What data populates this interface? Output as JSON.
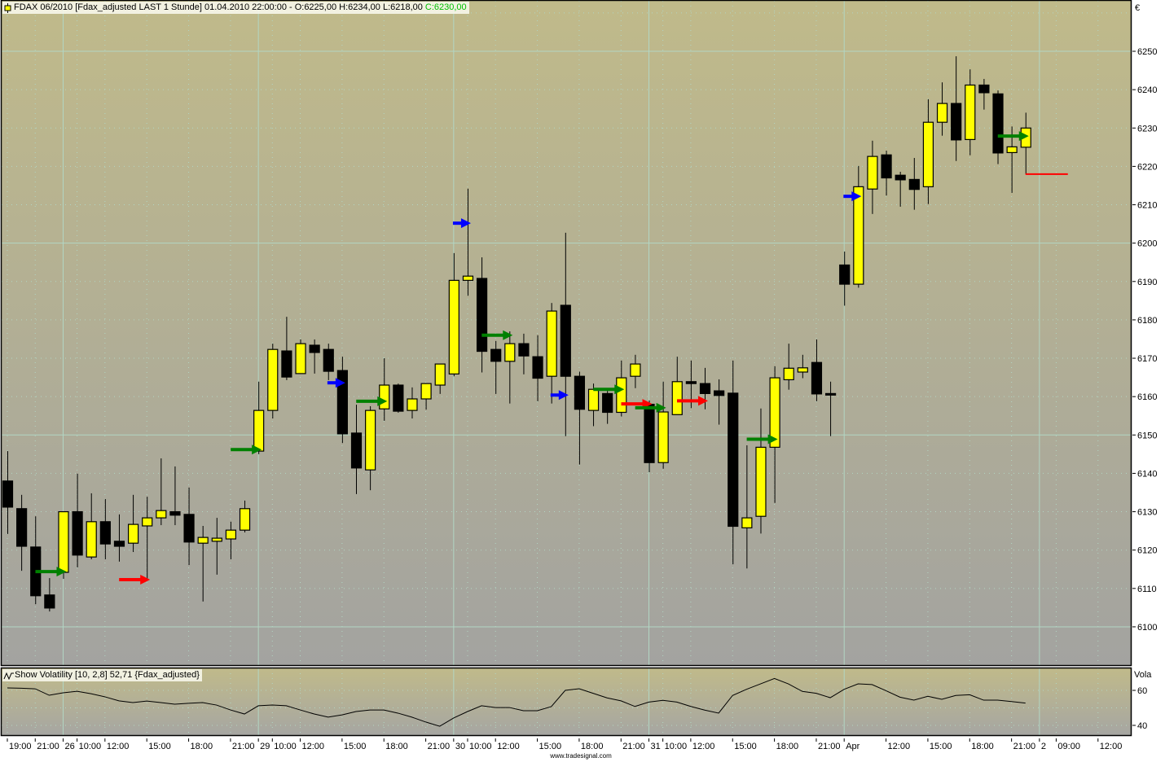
{
  "header": {
    "icon": "candlestick-icon",
    "text": "FDAX 06/2010 [Fdax_adjusted LAST 1 Stunde] 01.04.2010 22:00:00 - O:6225,00 H:6234,00 L:6218,00",
    "close": "C:6230,00",
    "close_color": "#00c000"
  },
  "indicator": {
    "icon": "wave-icon",
    "label": "Show Volatility [10, 2,8] 52,71 {Fdax_adjusted}"
  },
  "footer": "www.tradesignal.com",
  "colors": {
    "background_top": "#c0ba8a",
    "background_bottom": "#a3a3a0",
    "up_candle": "#ffff00",
    "down_candle": "#000000",
    "grid": "#b2d6c4"
  },
  "chart_data": [
    {
      "type": "candlestick",
      "y_unit_label": "€",
      "ylim": [
        6090,
        6265
      ],
      "y_ticks": [
        6100,
        6110,
        6120,
        6130,
        6140,
        6150,
        6160,
        6170,
        6180,
        6190,
        6200,
        6210,
        6220,
        6230,
        6240,
        6250
      ],
      "grid": true,
      "x_ticks": [
        {
          "label": "19:00",
          "index": 0
        },
        {
          "label": "21:00",
          "index": 2
        },
        {
          "label": "26",
          "index": 4,
          "day": true
        },
        {
          "label": "10:00",
          "index": 5
        },
        {
          "label": "12:00",
          "index": 7
        },
        {
          "label": "15:00",
          "index": 10
        },
        {
          "label": "18:00",
          "index": 13
        },
        {
          "label": "21:00",
          "index": 16
        },
        {
          "label": "29",
          "index": 18,
          "day": true
        },
        {
          "label": "10:00",
          "index": 19
        },
        {
          "label": "12:00",
          "index": 21
        },
        {
          "label": "15:00",
          "index": 24
        },
        {
          "label": "18:00",
          "index": 27
        },
        {
          "label": "21:00",
          "index": 30
        },
        {
          "label": "30",
          "index": 32,
          "day": true
        },
        {
          "label": "10:00",
          "index": 33
        },
        {
          "label": "12:00",
          "index": 35
        },
        {
          "label": "15:00",
          "index": 38
        },
        {
          "label": "18:00",
          "index": 41
        },
        {
          "label": "21:00",
          "index": 44
        },
        {
          "label": "31",
          "index": 46,
          "day": true
        },
        {
          "label": "10:00",
          "index": 47
        },
        {
          "label": "12:00",
          "index": 49
        },
        {
          "label": "15:00",
          "index": 52
        },
        {
          "label": "18:00",
          "index": 55
        },
        {
          "label": "21:00",
          "index": 58
        },
        {
          "label": "Apr",
          "index": 60,
          "day": true
        },
        {
          "label": "12:00",
          "index": 63
        },
        {
          "label": "15:00",
          "index": 66
        },
        {
          "label": "18:00",
          "index": 69
        },
        {
          "label": "21:00",
          "index": 72
        },
        {
          "label": "2",
          "index": 74,
          "day": true
        },
        {
          "label": "09:00",
          "index": 75.2
        },
        {
          "label": "12:00",
          "index": 78.2
        }
      ],
      "ohlc": [
        [
          6138.0,
          6145.8,
          6124.2,
          6131.2
        ],
        [
          6130.8,
          6134.4,
          6114.6,
          6121.0
        ],
        [
          6120.8,
          6128.8,
          6105.9,
          6108.1
        ],
        [
          6108.3,
          6112.7,
          6104.0,
          6104.9
        ],
        [
          6114.2,
          6130.0,
          6112.5,
          6130.0
        ],
        [
          6130.0,
          6139.9,
          6115.5,
          6118.7
        ],
        [
          6118.2,
          6134.8,
          6117.6,
          6127.4
        ],
        [
          6127.4,
          6133.3,
          6117.6,
          6121.6
        ],
        [
          6122.3,
          6129.3,
          6117.0,
          6121.0
        ],
        [
          6121.8,
          6134.4,
          6119.5,
          6126.7
        ],
        [
          6126.3,
          6133.9,
          6112.5,
          6128.4
        ],
        [
          6128.4,
          6143.9,
          6126.5,
          6130.3
        ],
        [
          6130.0,
          6141.8,
          6126.5,
          6129.1
        ],
        [
          6129.3,
          6136.3,
          6116.1,
          6122.1
        ],
        [
          6121.8,
          6126.3,
          6106.6,
          6123.3
        ],
        [
          6122.3,
          6128.4,
          6113.6,
          6123.1
        ],
        [
          6122.9,
          6127.4,
          6117.6,
          6125.2
        ],
        [
          6125.2,
          6132.9,
          6124.6,
          6130.8
        ],
        [
          6145.8,
          6163.9,
          6145.0,
          6156.4
        ],
        [
          6156.4,
          6173.8,
          6154.3,
          6172.3
        ],
        [
          6171.9,
          6180.8,
          6164.3,
          6165.1
        ],
        [
          6166.0,
          6174.9,
          6166.0,
          6173.8
        ],
        [
          6173.4,
          6174.9,
          6166.0,
          6171.5
        ],
        [
          6172.3,
          6173.8,
          6164.3,
          6166.6
        ],
        [
          6166.8,
          6170.4,
          6147.9,
          6150.3
        ],
        [
          6150.5,
          6157.9,
          6134.6,
          6141.4
        ],
        [
          6140.9,
          6157.5,
          6135.6,
          6156.4
        ],
        [
          6156.8,
          6170.0,
          6153.7,
          6163.0
        ],
        [
          6163.0,
          6163.4,
          6155.8,
          6156.2
        ],
        [
          6156.4,
          6162.4,
          6154.3,
          6159.4
        ],
        [
          6159.4,
          6163.4,
          6156.6,
          6163.4
        ],
        [
          6163.0,
          6168.5,
          6160.7,
          6168.5
        ],
        [
          6165.9,
          6197.4,
          6165.3,
          6190.3
        ],
        [
          6190.3,
          6214.2,
          6186.3,
          6191.4
        ],
        [
          6190.8,
          6196.3,
          6166.3,
          6171.8
        ],
        [
          6172.3,
          6174.5,
          6160.7,
          6169.2
        ],
        [
          6169.2,
          6177.0,
          6158.2,
          6173.8
        ],
        [
          6173.8,
          6176.4,
          6165.8,
          6170.6
        ],
        [
          6170.4,
          6176.0,
          6158.8,
          6164.8
        ],
        [
          6165.3,
          6184.4,
          6158.2,
          6182.3
        ],
        [
          6183.8,
          6202.7,
          6149.7,
          6165.3
        ],
        [
          6165.3,
          6166.5,
          6142.3,
          6156.7
        ],
        [
          6156.4,
          6163.4,
          6152.3,
          6161.9
        ],
        [
          6160.8,
          6161.5,
          6152.9,
          6155.9
        ],
        [
          6155.9,
          6169.4,
          6154.8,
          6164.9
        ],
        [
          6165.3,
          6170.9,
          6162.2,
          6168.5
        ],
        [
          6158.0,
          6159.0,
          6140.3,
          6142.8
        ],
        [
          6142.8,
          6163.9,
          6141.2,
          6156.0
        ],
        [
          6155.3,
          6170.4,
          6155.3,
          6163.9
        ],
        [
          6163.9,
          6169.4,
          6157.0,
          6163.4
        ],
        [
          6163.4,
          6167.5,
          6156.7,
          6160.8
        ],
        [
          6161.5,
          6164.5,
          6152.7,
          6160.3
        ],
        [
          6160.9,
          6169.4,
          6116.3,
          6126.2
        ],
        [
          6125.8,
          6147.3,
          6115.2,
          6128.4
        ],
        [
          6128.8,
          6156.9,
          6124.3,
          6146.8
        ],
        [
          6146.8,
          6167.9,
          6132.3,
          6164.9
        ],
        [
          6164.4,
          6173.8,
          6161.8,
          6167.4
        ],
        [
          6166.4,
          6170.9,
          6164.8,
          6167.5
        ],
        [
          6168.9,
          6174.9,
          6158.8,
          6160.7
        ],
        [
          6160.8,
          6163.9,
          6149.7,
          6160.4
        ],
        [
          6194.3,
          6197.8,
          6183.7,
          6189.3
        ],
        [
          6189.3,
          6220.1,
          6188.4,
          6214.7
        ],
        [
          6214.1,
          6226.7,
          6207.6,
          6222.6
        ],
        [
          6223.0,
          6224.1,
          6212.4,
          6217.0
        ],
        [
          6217.7,
          6218.6,
          6209.5,
          6216.5
        ],
        [
          6216.6,
          6222.2,
          6208.7,
          6214.0
        ],
        [
          6214.7,
          6237.5,
          6210.2,
          6231.5
        ],
        [
          6231.5,
          6241.9,
          6228.0,
          6236.4
        ],
        [
          6236.4,
          6248.7,
          6221.4,
          6226.9
        ],
        [
          6227.0,
          6245.3,
          6222.9,
          6241.2
        ],
        [
          6241.2,
          6242.8,
          6234.8,
          6239.2
        ],
        [
          6238.9,
          6239.8,
          6220.6,
          6223.5
        ],
        [
          6223.6,
          6230.4,
          6213.1,
          6225.1
        ],
        [
          6225.0,
          6234.0,
          6218.0,
          6230.0
        ]
      ],
      "signals": [
        {
          "index": 4,
          "price": 6114.4,
          "color": "#008000"
        },
        {
          "index": 10,
          "price": 6112.3,
          "color": "#ff0000"
        },
        {
          "index": 18,
          "price": 6146.2,
          "color": "#008000"
        },
        {
          "index": 24,
          "price": 6163.6,
          "color": "#0000ff"
        },
        {
          "index": 27,
          "price": 6158.8,
          "color": "#008000"
        },
        {
          "index": 33,
          "price": 6205.2,
          "color": "#0000ff"
        },
        {
          "index": 36,
          "price": 6176.0,
          "color": "#008000"
        },
        {
          "index": 40,
          "price": 6160.4,
          "color": "#0000ff"
        },
        {
          "index": 44,
          "price": 6161.9,
          "color": "#008000"
        },
        {
          "index": 46,
          "price": 6158.1,
          "color": "#ff0000"
        },
        {
          "index": 47,
          "price": 6157.1,
          "color": "#008000"
        },
        {
          "index": 50,
          "price": 6158.9,
          "color": "#ff0000"
        },
        {
          "index": 55,
          "price": 6148.9,
          "color": "#008000"
        },
        {
          "index": 61,
          "price": 6212.2,
          "color": "#0000ff"
        },
        {
          "index": 73,
          "price": 6227.9,
          "color": "#008000"
        }
      ],
      "level_line": {
        "price": 6218,
        "color": "#ff0000"
      }
    },
    {
      "type": "line",
      "y_unit_label": "Vola",
      "y_ticks": [
        60,
        40
      ],
      "ylim": [
        33,
        73
      ],
      "last_value": 52.71,
      "values": [
        61.4,
        61.2,
        60.9,
        57.2,
        58.6,
        59.5,
        58.1,
        56.3,
        54.0,
        53.0,
        53.9,
        53.0,
        52.1,
        52.6,
        53.0,
        51.6,
        48.8,
        46.5,
        51.2,
        51.6,
        51.2,
        48.8,
        46.5,
        44.7,
        46.0,
        47.9,
        48.8,
        48.8,
        47.0,
        44.7,
        41.9,
        39.5,
        44.2,
        47.9,
        51.2,
        50.2,
        50.2,
        48.4,
        48.4,
        50.7,
        60.0,
        60.9,
        58.3,
        55.7,
        54.0,
        50.8,
        53.3,
        54.3,
        53.3,
        50.8,
        48.7,
        47.0,
        57.1,
        60.6,
        63.7,
        66.8,
        63.7,
        59.4,
        58.3,
        55.8,
        60.6,
        63.7,
        63.3,
        59.8,
        56.1,
        54.4,
        56.6,
        54.9,
        57.1,
        57.5,
        54.4,
        54.4,
        53.6,
        52.71
      ]
    }
  ]
}
